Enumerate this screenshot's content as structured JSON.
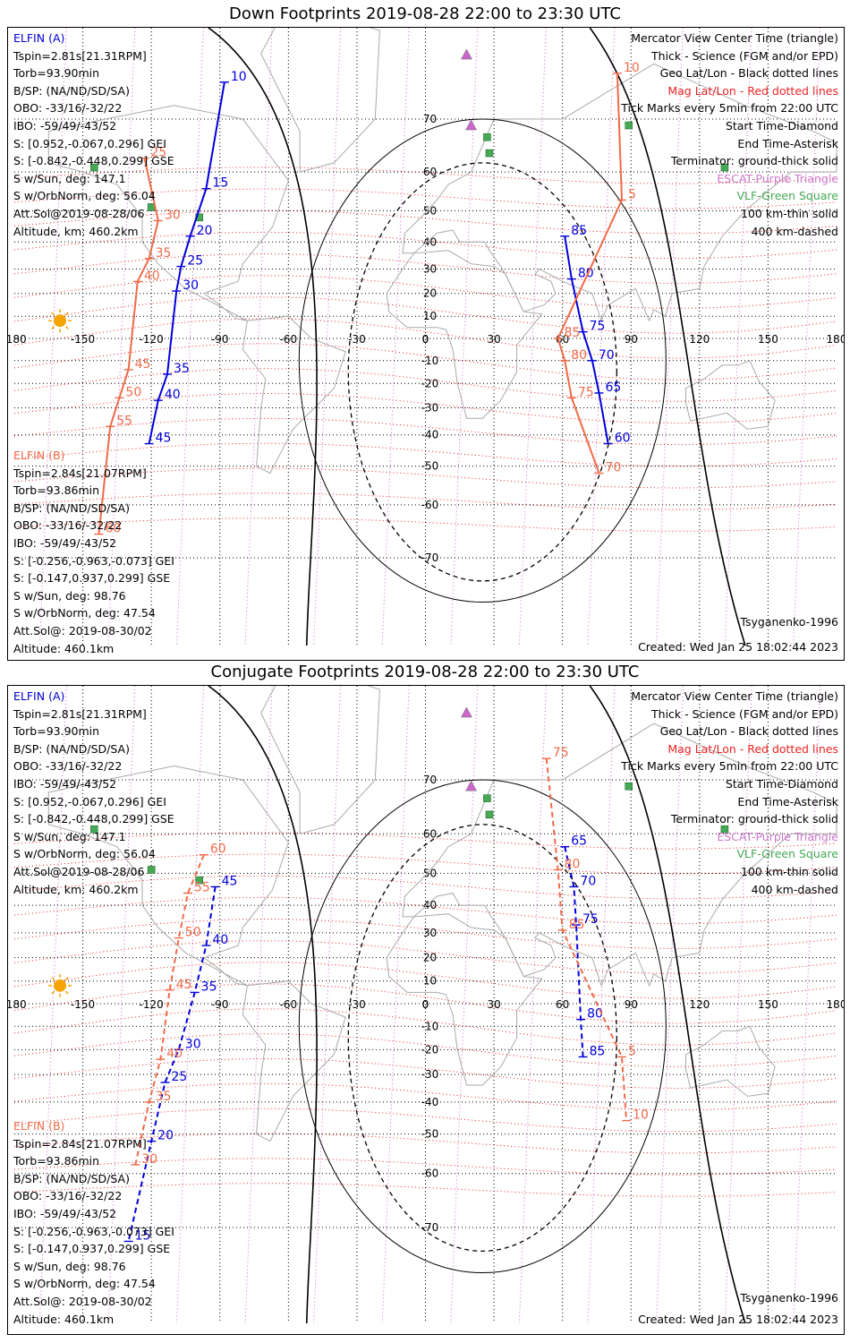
{
  "panels": [
    {
      "title": "Down Footprints 2019-08-28 22:00 to 23:30 UTC",
      "sat_a": {
        "name": "ELFIN (A)",
        "lines": [
          "Tspin=2.81s[21.31RPM]",
          "Torb=93.90min",
          "B/SP: (NA/ND/SD/SA)",
          "OBO: -33/16/-32/22",
          "IBO: -59/49/-43/52",
          "S: [0.952,-0.067,0.296] GEI",
          "S: [-0.842,-0.448,0.299] GSE",
          "S w/Sun, deg: 147.1",
          "S w/OrbNorm, deg: 56.04",
          "Att.Sol@2019-08-28/06",
          "Altitude, km: 460.2km"
        ]
      },
      "sat_b": {
        "name": "ELFIN (B)",
        "lines": [
          "Tspin=2.84s[21.07RPM]",
          "Torb=93.86min",
          "B/SP: (NA/ND/SD/SA)",
          "OBO: -33/16/-32/22",
          "IBO: -59/49/-43/52",
          "S: [-0.256,-0.963,-0.073] GEI",
          "S: [-0.147,0.937,0.299] GSE",
          "S w/Sun, deg: 98.76",
          "S w/OrbNorm, deg: 47.54",
          "Att.Sol@: 2019-08-30/02",
          "Altitude: 460.1km"
        ]
      },
      "legend": [
        "Mercator View Center Time (triangle)",
        "Thick - Science (FGM and/or EPD)",
        "Geo Lat/Lon - Black dotted lines",
        "Mag Lat/Lon - Red dotted lines",
        "Tick Marks every 5min from 22:00 UTC",
        "Start Time-Diamond",
        "End Time-Asterisk",
        "Terminator: ground-thick solid",
        "ESCAT-Purple Triangle",
        "VLF-Green Square",
        "100 km-thin solid",
        "400 km-dashed"
      ],
      "footer_left": "",
      "footer_right_model": "Tsyganenko-1996",
      "footer_created": "Created: Wed Jan 25 18:02:44 2023",
      "trackA": [
        [
          "10",
          -88,
          75
        ],
        [
          "15",
          -96,
          56
        ],
        [
          "20",
          -103,
          42
        ],
        [
          "25",
          -107,
          31
        ],
        [
          "30",
          -109,
          21
        ],
        [
          "35",
          -113,
          -16
        ],
        [
          "40",
          -117,
          -27
        ],
        [
          "45",
          -121,
          -43
        ]
      ],
      "trackB": [
        [
          "25",
          -123,
          63
        ],
        [
          "30",
          -117,
          47
        ],
        [
          "35",
          -121,
          34
        ],
        [
          "40",
          -126,
          25
        ],
        [
          "45",
          -130,
          -14
        ],
        [
          "50",
          -134,
          -26
        ],
        [
          "55",
          -138,
          -37
        ],
        [
          "60",
          -143,
          -66
        ]
      ],
      "trackA2": [
        [
          "85",
          61,
          42
        ],
        [
          "80",
          64,
          26
        ],
        [
          "75",
          69,
          3
        ],
        [
          "70",
          73,
          -10
        ],
        [
          "65",
          76,
          -24
        ],
        [
          "60",
          80,
          -43
        ]
      ],
      "trackB2": [
        [
          "10",
          84,
          76
        ],
        [
          "5",
          86,
          53
        ],
        [
          "85",
          58,
          0
        ],
        [
          "80",
          61,
          -10
        ],
        [
          "75",
          64,
          -26
        ],
        [
          "70",
          76,
          -52
        ]
      ]
    },
    {
      "title": "Conjugate Footprints 2019-08-28 22:00 to 23:30 UTC",
      "sat_a": {
        "name": "ELFIN (A)",
        "lines": [
          "Tspin=2.81s[21.31RPM]",
          "Torb=93.90min",
          "B/SP: (NA/ND/SD/SA)",
          "OBO: -33/16/-32/22",
          "IBO: -59/49/-43/52",
          "S: [0.952,-0.067,0.296] GEI",
          "S: [-0.842,-0.448,0.299] GSE",
          "S w/Sun, deg: 147.1",
          "S w/OrbNorm, deg: 56.04",
          "Att.Sol@2019-08-28/06",
          "Altitude, km: 460.2km"
        ]
      },
      "sat_b": {
        "name": "ELFIN (B)",
        "lines": [
          "Tspin=2.84s[21.07RPM]",
          "Torb=93.86min",
          "B/SP: (NA/ND/SD/SA)",
          "OBO: -33/16/-32/22",
          "IBO: -59/49/-43/52",
          "S: [-0.256,-0.963,-0.073] GEI",
          "S: [-0.147,0.937,0.299] GSE",
          "S w/Sun, deg: 98.76",
          "S w/OrbNorm, deg: 47.54",
          "Att.Sol@: 2019-08-30/02",
          "Altitude: 460.1km"
        ]
      },
      "legend": [
        "Mercator View Center Time (triangle)",
        "Thick - Science (FGM and/or EPD)",
        "Geo Lat/Lon - Black dotted lines",
        "Mag Lat/Lon - Red dotted lines",
        "Tick Marks every 5min from 22:00 UTC",
        "Start Time-Diamond",
        "End Time-Asterisk",
        "Terminator: ground-thick solid",
        "ESCAT-Purple Triangle",
        "VLF-Green Square",
        "100 km-thin solid",
        "400 km-dashed"
      ],
      "footer_left": "",
      "footer_right_model": "Tsyganenko-1996",
      "footer_created": "Created: Wed Jan 25 18:02:44 2023",
      "trackA": [
        [
          "45",
          -92,
          46
        ],
        [
          "40",
          -96,
          25
        ],
        [
          "35",
          -101,
          5
        ],
        [
          "30",
          -108,
          -20
        ],
        [
          "25",
          -114,
          -33
        ],
        [
          "20",
          -120,
          -52
        ],
        [
          "15",
          -130,
          -72
        ]
      ],
      "trackB": [
        [
          "60",
          -97,
          55
        ],
        [
          "55",
          -104,
          44
        ],
        [
          "50",
          -108,
          28
        ],
        [
          "45",
          -112,
          6
        ],
        [
          "40",
          -116,
          -24
        ],
        [
          "35",
          -121,
          -40
        ],
        [
          "30",
          -127,
          -58
        ]
      ],
      "trackA2": [
        [
          "65",
          61,
          57
        ],
        [
          "70",
          65,
          46
        ],
        [
          "75",
          66,
          33
        ],
        [
          "80",
          68,
          -7
        ],
        [
          "85",
          69,
          -23
        ]
      ],
      "trackB2": [
        [
          "75",
          53,
          73
        ],
        [
          "80",
          58,
          51
        ],
        [
          "85",
          60,
          31
        ],
        [
          "5",
          86,
          -23
        ],
        [
          "10",
          88,
          -46
        ]
      ]
    }
  ],
  "lon_ticks": [
    "-180",
    "-150",
    "-120",
    "-90",
    "-60",
    "-30",
    "0",
    "30",
    "60",
    "90",
    "120",
    "150",
    "180"
  ],
  "lat_ticks": [
    "70",
    "60",
    "50",
    "40",
    "30",
    "20",
    "10",
    "0",
    "-10",
    "-20",
    "-30",
    "-40",
    "-50",
    "-60",
    "-70"
  ],
  "colors": {
    "sat_a": "#0000dd",
    "sat_b": "#f06a48",
    "mag": "#ee2222",
    "escat": "#cc66cc",
    "vlf": "#44aa55",
    "sun": "#f5a500"
  }
}
